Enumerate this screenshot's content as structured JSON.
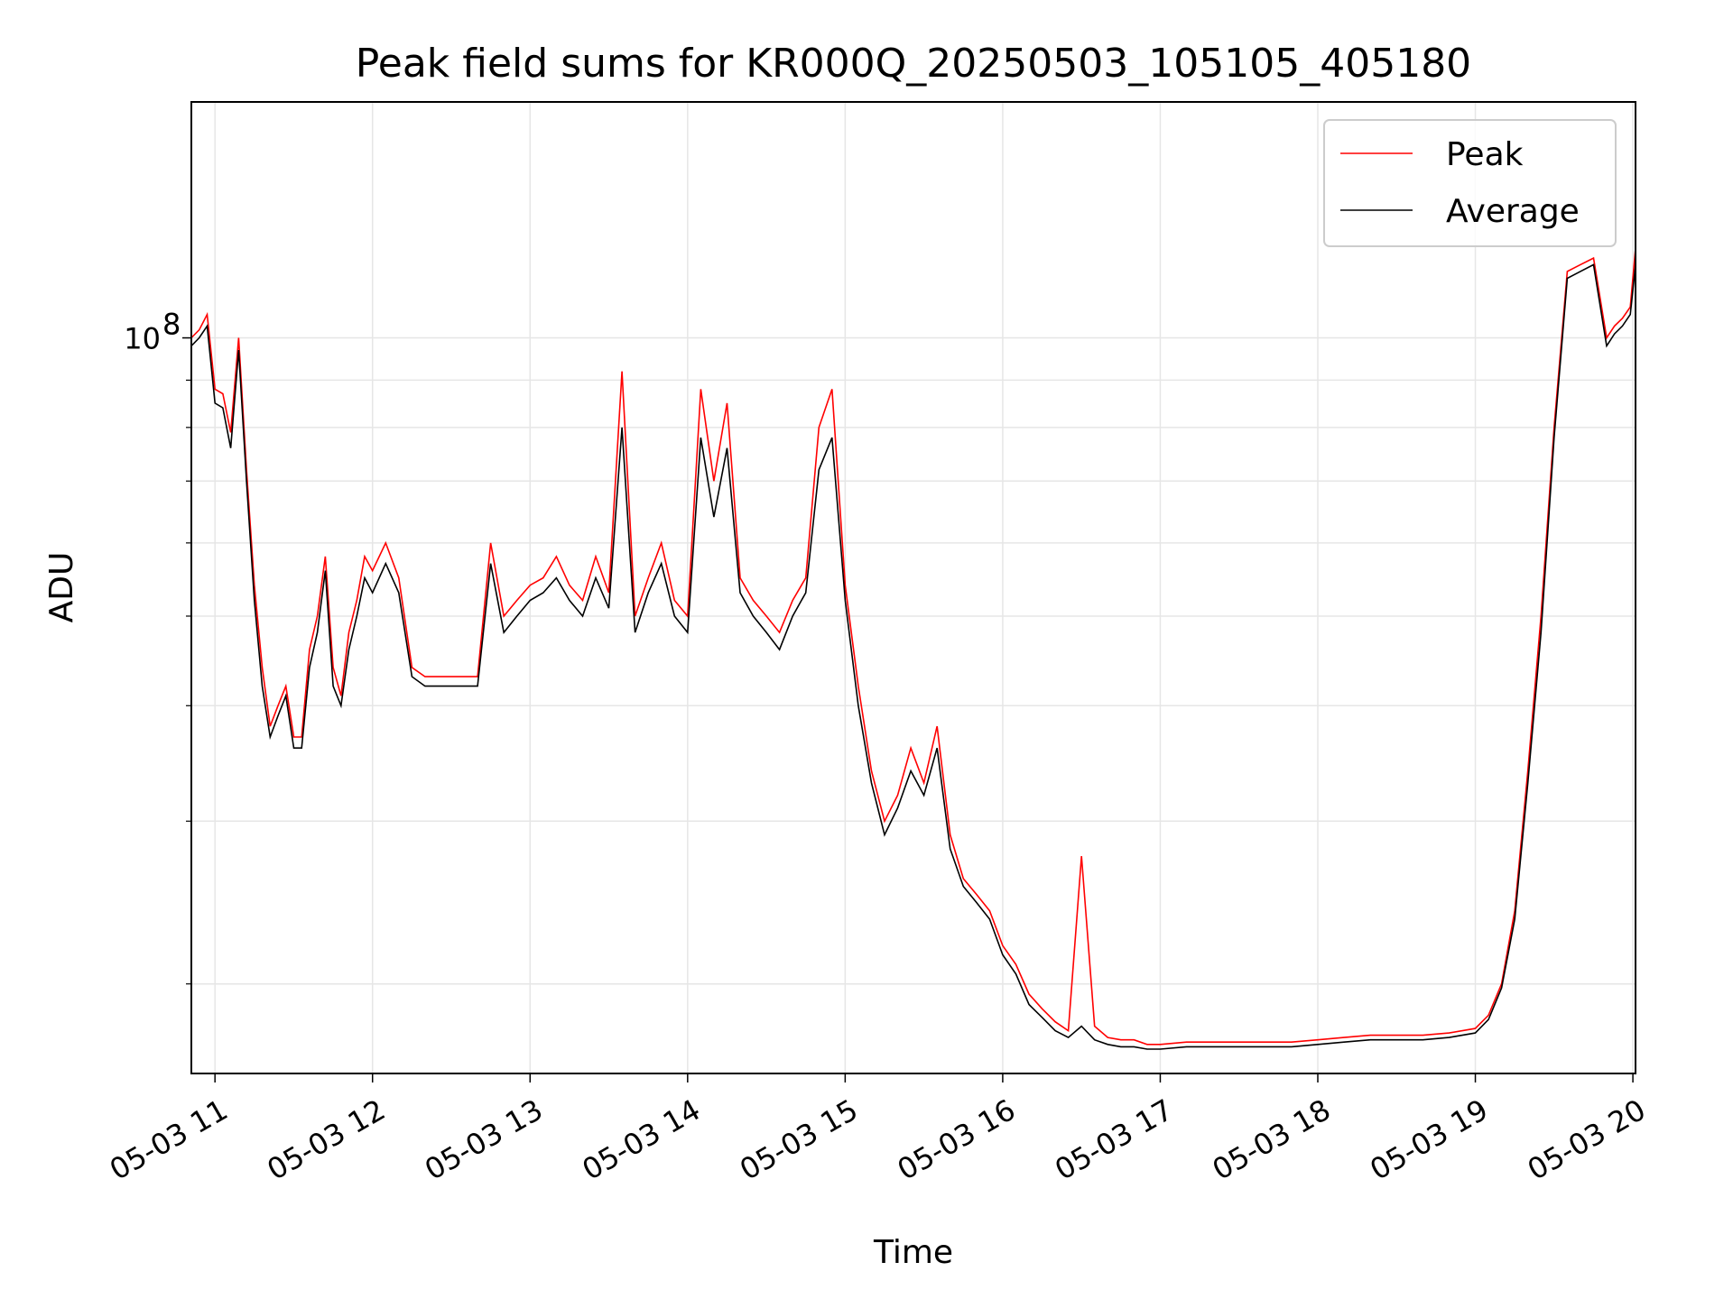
{
  "chart_data": {
    "type": "line",
    "title": "Peak field sums for KR000Q_20250503_105105_405180",
    "xlabel": "Time",
    "ylabel": "ADU",
    "y_scale": "log",
    "xlim": [
      "05-03 10:51",
      "05-03 20:01"
    ],
    "ylim": [
      16000000,
      180000000
    ],
    "x_ticks": [
      "05-03 11",
      "05-03 12",
      "05-03 13",
      "05-03 14",
      "05-03 15",
      "05-03 16",
      "05-03 17",
      "05-03 18",
      "05-03 19",
      "05-03 20"
    ],
    "y_ticks": [
      {
        "value": 100000000,
        "label": "10",
        "exponent": "8"
      }
    ],
    "y_minor_ticks": [
      20000000,
      30000000,
      40000000,
      50000000,
      60000000,
      70000000,
      80000000,
      90000000
    ],
    "grid": true,
    "legend": {
      "position": "top-right"
    },
    "x": [
      "10:51",
      "10:54",
      "10:57",
      "11:00",
      "11:03",
      "11:06",
      "11:09",
      "11:12",
      "11:15",
      "11:18",
      "11:21",
      "11:24",
      "11:27",
      "11:30",
      "11:33",
      "11:36",
      "11:39",
      "11:42",
      "11:45",
      "11:48",
      "11:51",
      "11:54",
      "11:57",
      "12:00",
      "12:05",
      "12:10",
      "12:15",
      "12:20",
      "12:25",
      "12:30",
      "12:35",
      "12:40",
      "12:45",
      "12:50",
      "12:55",
      "13:00",
      "13:05",
      "13:10",
      "13:15",
      "13:20",
      "13:25",
      "13:30",
      "13:35",
      "13:40",
      "13:45",
      "13:50",
      "13:55",
      "14:00",
      "14:05",
      "14:10",
      "14:15",
      "14:20",
      "14:25",
      "14:30",
      "14:35",
      "14:40",
      "14:45",
      "14:50",
      "14:55",
      "15:00",
      "15:05",
      "15:10",
      "15:15",
      "15:20",
      "15:25",
      "15:30",
      "15:35",
      "15:40",
      "15:45",
      "15:50",
      "15:55",
      "16:00",
      "16:05",
      "16:10",
      "16:15",
      "16:20",
      "16:25",
      "16:30",
      "16:35",
      "16:40",
      "16:45",
      "16:50",
      "16:55",
      "17:00",
      "17:10",
      "17:20",
      "17:30",
      "17:40",
      "17:50",
      "18:00",
      "18:10",
      "18:20",
      "18:30",
      "18:40",
      "18:50",
      "19:00",
      "19:05",
      "19:10",
      "19:15",
      "19:20",
      "19:25",
      "19:30",
      "19:35",
      "19:40",
      "19:45",
      "19:50",
      "19:53",
      "19:56",
      "19:59",
      "20:01"
    ],
    "series": [
      {
        "name": "Peak",
        "color": "#ff0000",
        "values": [
          100000000,
          102000000,
          106000000,
          88000000,
          87000000,
          79000000,
          100000000,
          72000000,
          54000000,
          44000000,
          38000000,
          40000000,
          42000000,
          37000000,
          37000000,
          46000000,
          50000000,
          58000000,
          44000000,
          41000000,
          48000000,
          52000000,
          58000000,
          56000000,
          60000000,
          55000000,
          44000000,
          43000000,
          43000000,
          43000000,
          43000000,
          43000000,
          60000000,
          50000000,
          52000000,
          54000000,
          55000000,
          58000000,
          54000000,
          52000000,
          58000000,
          53000000,
          92000000,
          50000000,
          55000000,
          60000000,
          52000000,
          50000000,
          88000000,
          70000000,
          85000000,
          55000000,
          52000000,
          50000000,
          48000000,
          52000000,
          55000000,
          80000000,
          88000000,
          54000000,
          42000000,
          34000000,
          30000000,
          32000000,
          36000000,
          33000000,
          38000000,
          29000000,
          26000000,
          25000000,
          24000000,
          22000000,
          21000000,
          19500000,
          18800000,
          18200000,
          17800000,
          27500000,
          18000000,
          17500000,
          17400000,
          17400000,
          17200000,
          17200000,
          17300000,
          17300000,
          17300000,
          17300000,
          17300000,
          17400000,
          17500000,
          17600000,
          17600000,
          17600000,
          17700000,
          17900000,
          18500000,
          20000000,
          24000000,
          34000000,
          50000000,
          80000000,
          118000000,
          120000000,
          122000000,
          100000000,
          103000000,
          105000000,
          108000000,
          125000000
        ]
      },
      {
        "name": "Average",
        "color": "#000000",
        "values": [
          98000000,
          100000000,
          103000000,
          85000000,
          84000000,
          76000000,
          97000000,
          70000000,
          52000000,
          42000000,
          37000000,
          39000000,
          41000000,
          36000000,
          36000000,
          44000000,
          48000000,
          56000000,
          42000000,
          40000000,
          46000000,
          50000000,
          55000000,
          53000000,
          57000000,
          53000000,
          43000000,
          42000000,
          42000000,
          42000000,
          42000000,
          42000000,
          57000000,
          48000000,
          50000000,
          52000000,
          53000000,
          55000000,
          52000000,
          50000000,
          55000000,
          51000000,
          80000000,
          48000000,
          53000000,
          57000000,
          50000000,
          48000000,
          78000000,
          64000000,
          76000000,
          53000000,
          50000000,
          48000000,
          46000000,
          50000000,
          53000000,
          72000000,
          78000000,
          52000000,
          40000000,
          33000000,
          29000000,
          31000000,
          34000000,
          32000000,
          36000000,
          28000000,
          25500000,
          24500000,
          23500000,
          21500000,
          20500000,
          19000000,
          18400000,
          17800000,
          17500000,
          18000000,
          17400000,
          17200000,
          17100000,
          17100000,
          17000000,
          17000000,
          17100000,
          17100000,
          17100000,
          17100000,
          17100000,
          17200000,
          17300000,
          17400000,
          17400000,
          17400000,
          17500000,
          17700000,
          18300000,
          19800000,
          23500000,
          33000000,
          48000000,
          78000000,
          116000000,
          118000000,
          120000000,
          98000000,
          101000000,
          103000000,
          106000000,
          120000000
        ]
      }
    ]
  }
}
